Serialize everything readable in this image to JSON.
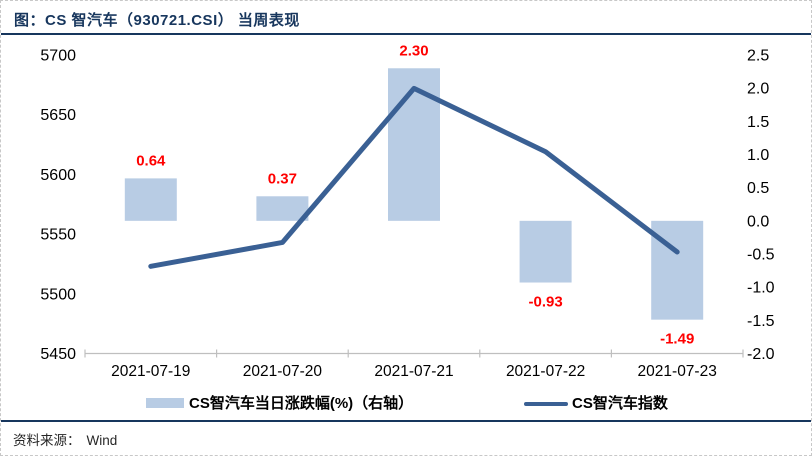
{
  "title": "图：CS 智汽车（930721.CSI） 当周表现",
  "source": {
    "label": "资料来源：",
    "value": "Wind"
  },
  "colors": {
    "bar_fill": "#b8cce4",
    "line_stroke": "#3a6094",
    "data_label": "#ff0000",
    "navy_rule": "#17365d",
    "axis_line": "#bfbfbf",
    "axis_text": "#000000"
  },
  "chart_data": {
    "type": "combo",
    "categories": [
      "2021-07-19",
      "2021-07-20",
      "2021-07-21",
      "2021-07-22",
      "2021-07-23"
    ],
    "series": [
      {
        "name": "CS智汽车当日涨跌幅(%)（右轴）",
        "type": "bar",
        "axis": "right",
        "values": [
          0.64,
          0.37,
          2.3,
          -0.93,
          -1.49
        ],
        "labels": [
          "0.64",
          "0.37",
          "2.30",
          "-0.93",
          "-1.49"
        ]
      },
      {
        "name": "CS智汽车指数",
        "type": "line",
        "axis": "left",
        "values": [
          5523,
          5543,
          5672,
          5619,
          5535
        ]
      }
    ],
    "left_axis": {
      "min": 5450,
      "max": 5700,
      "tick_labels": [
        "5700",
        "5650",
        "5600",
        "5550",
        "5500",
        "5450"
      ]
    },
    "right_axis": {
      "min": -2.0,
      "max": 2.5,
      "tick_labels": [
        "2.5",
        "2.0",
        "1.5",
        "1.0",
        "0.5",
        "0.0",
        "-0.5",
        "-1.0",
        "-1.5",
        "-2.0"
      ]
    },
    "grid": false,
    "legend_position": "bottom"
  }
}
